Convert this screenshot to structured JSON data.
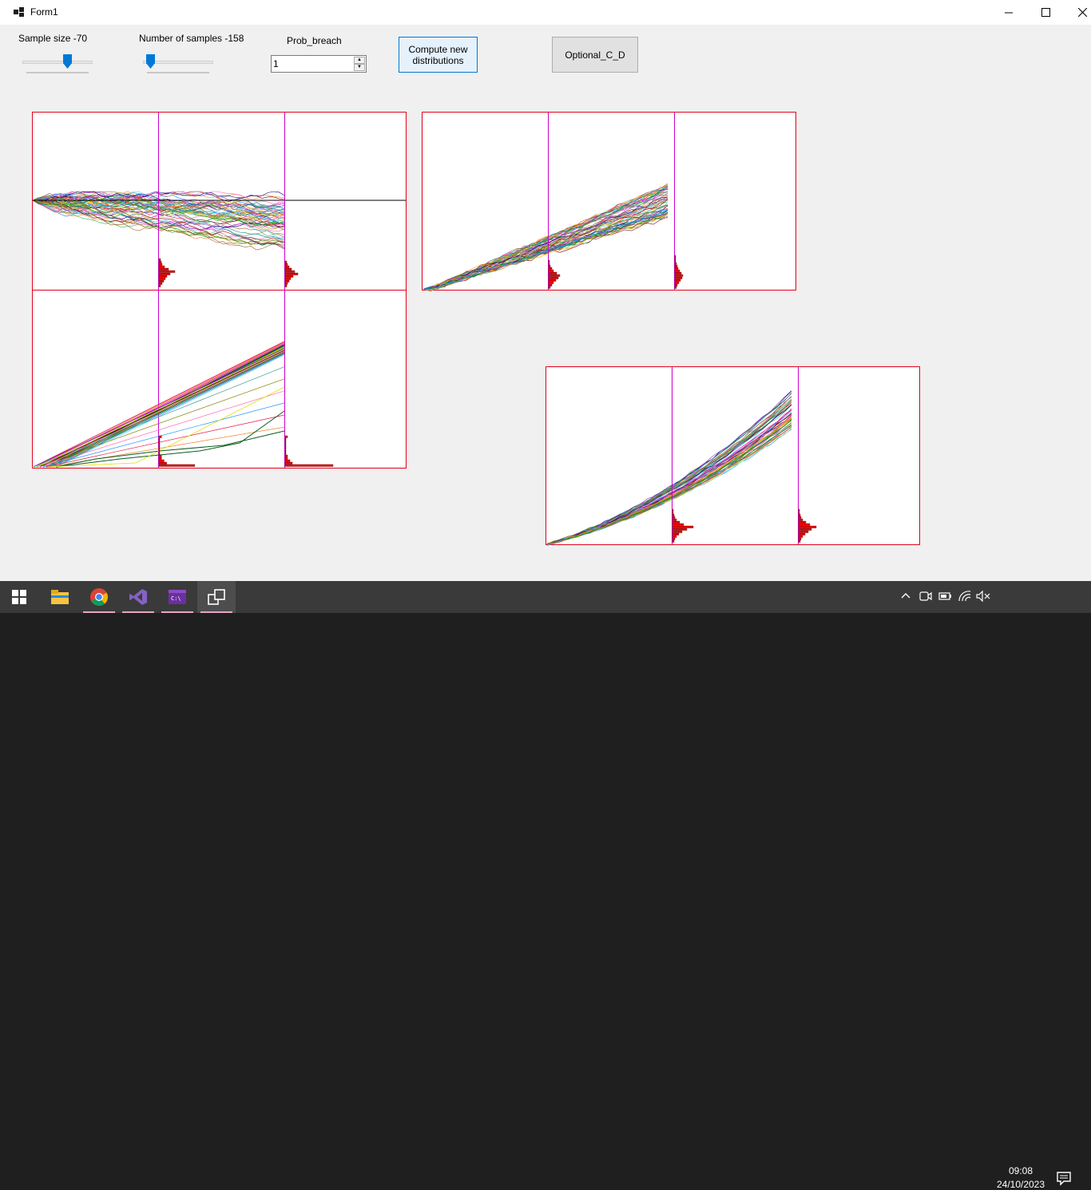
{
  "window": {
    "title": "Form1",
    "controls": [
      "minimize",
      "maximize",
      "close"
    ]
  },
  "controls": {
    "sample_size": {
      "label": "Sample size -70",
      "value": 70
    },
    "num_samples": {
      "label": "Number of samples -158",
      "value": 158
    },
    "prob_breach": {
      "label": "Prob_breach",
      "value": "1"
    },
    "compute_button": "Compute new distributions",
    "optional_button": "Optional_C_D"
  },
  "colors": {
    "frame": "#e2001a",
    "marker_line": "#cc00cc",
    "histogram": "#e00000",
    "accent": "#0078d7"
  },
  "chart_data": [
    {
      "type": "line",
      "description_free": true,
      "panel": "top-left",
      "x_markers": 2,
      "has_histograms": true
    },
    {
      "type": "line",
      "panel": "bottom-left",
      "x_markers": 2,
      "has_histograms": true
    },
    {
      "type": "line",
      "panel": "top-right",
      "x_markers": 2,
      "has_histograms": true
    },
    {
      "type": "line",
      "panel": "bottom-right",
      "x_markers": 2,
      "has_histograms": true
    }
  ],
  "taskbar": {
    "apps": [
      "windows-start",
      "file-explorer",
      "chrome",
      "visual-studio",
      "terminal",
      "form1-app"
    ],
    "clock_time": "09:08",
    "clock_date": "24/10/2023"
  }
}
